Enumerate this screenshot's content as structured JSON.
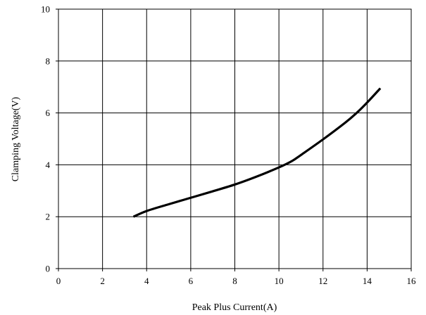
{
  "chart_data": {
    "type": "line",
    "title": "",
    "xlabel": "Peak Plus Current(A)",
    "ylabel": "Clamping Voltage(V)",
    "xlim": [
      0,
      16
    ],
    "ylim": [
      0,
      10
    ],
    "xticks": [
      0,
      2,
      4,
      6,
      8,
      10,
      12,
      14,
      16
    ],
    "yticks": [
      0,
      2,
      4,
      6,
      8,
      10
    ],
    "xtick_labels": [
      "0",
      "2",
      "4",
      "6",
      "8",
      "10",
      "12",
      "14",
      "16"
    ],
    "ytick_labels": [
      "0",
      "2",
      "4",
      "6",
      "8",
      "10"
    ],
    "grid": true,
    "legend": false,
    "series": [
      {
        "color": "#000000",
        "x": [
          3.4,
          4,
          5,
          6,
          7,
          8,
          9,
          10,
          10.6,
          11,
          12,
          13,
          13.5,
          14,
          14.6
        ],
        "y": [
          2.0,
          2.22,
          2.48,
          2.73,
          2.98,
          3.24,
          3.55,
          3.9,
          4.15,
          4.38,
          4.98,
          5.62,
          5.98,
          6.4,
          6.95
        ]
      }
    ]
  }
}
